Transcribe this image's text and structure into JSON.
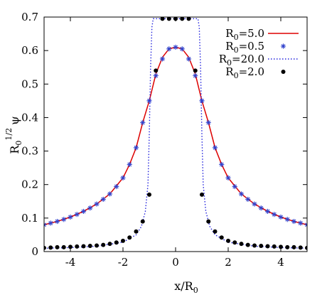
{
  "chart_data": {
    "type": "line",
    "xlabel": "x/R",
    "xlabel_sub": "0",
    "ylabel_base": "R",
    "ylabel_sub": "0",
    "ylabel_sup": "1/2",
    "ylabel_sym": "ψ",
    "xlim": [
      -5,
      5
    ],
    "ylim": [
      0,
      0.7
    ],
    "xticks": [
      -4,
      -2,
      0,
      2,
      4
    ],
    "yticks": [
      0,
      0.1,
      0.2,
      0.3,
      0.4,
      0.5,
      0.6,
      0.7
    ],
    "xtick_labels": [
      "-4",
      "-2",
      "0",
      "2",
      "4"
    ],
    "ytick_labels": [
      "0",
      "0.1",
      "0.2",
      "0.3",
      "0.4",
      "0.5",
      "0.6",
      "0.7"
    ],
    "legend_position": "top-right",
    "series": [
      {
        "name_base": "R",
        "name_sub": "0",
        "name_value": "=5.0",
        "style": "line",
        "color": "#dd0000",
        "x": [
          -5,
          -4.5,
          -4,
          -3.5,
          -3,
          -2.5,
          -2,
          -1.75,
          -1.5,
          -1.25,
          -1,
          -0.75,
          -0.5,
          -0.25,
          0,
          0.25,
          0.5,
          0.75,
          1,
          1.25,
          1.5,
          1.75,
          2,
          2.5,
          3,
          3.5,
          4,
          4.5,
          5
        ],
        "y": [
          0.08,
          0.09,
          0.103,
          0.12,
          0.142,
          0.172,
          0.22,
          0.26,
          0.31,
          0.385,
          0.45,
          0.53,
          0.58,
          0.605,
          0.61,
          0.605,
          0.58,
          0.53,
          0.45,
          0.385,
          0.31,
          0.26,
          0.22,
          0.172,
          0.142,
          0.12,
          0.103,
          0.09,
          0.08
        ]
      },
      {
        "name_base": "R",
        "name_sub": "0",
        "name_value": "=0.5",
        "style": "star",
        "color": "#3344cc",
        "x": [
          -5,
          -4.75,
          -4.5,
          -4.25,
          -4,
          -3.75,
          -3.5,
          -3.25,
          -3,
          -2.75,
          -2.5,
          -2.25,
          -2,
          -1.75,
          -1.5,
          -1.25,
          -1,
          -0.75,
          -0.5,
          -0.25,
          0,
          0.25,
          0.5,
          0.75,
          1,
          1.25,
          1.5,
          1.75,
          2,
          2.25,
          2.5,
          2.75,
          3,
          3.25,
          3.5,
          3.75,
          4,
          4.25,
          4.5,
          4.75,
          5
        ],
        "y": [
          0.08,
          0.085,
          0.09,
          0.096,
          0.103,
          0.111,
          0.12,
          0.13,
          0.142,
          0.156,
          0.172,
          0.194,
          0.22,
          0.26,
          0.31,
          0.385,
          0.45,
          0.525,
          0.575,
          0.605,
          0.61,
          0.605,
          0.575,
          0.525,
          0.45,
          0.385,
          0.31,
          0.26,
          0.22,
          0.194,
          0.172,
          0.156,
          0.142,
          0.13,
          0.12,
          0.111,
          0.103,
          0.096,
          0.09,
          0.085,
          0.08
        ]
      },
      {
        "name_base": "R",
        "name_sub": "0",
        "name_value": "=20.0",
        "style": "dotted",
        "color": "#2222dd",
        "x": [
          -5,
          -4,
          -3,
          -2,
          -1.5,
          -1.3,
          -1.15,
          -1.05,
          -1.0,
          -0.95,
          -0.9,
          -0.85,
          -0.5,
          0,
          0.5,
          0.85,
          0.9,
          0.95,
          1.0,
          1.05,
          1.15,
          1.3,
          1.5,
          2,
          3,
          4,
          5
        ],
        "y": [
          0.01,
          0.012,
          0.016,
          0.028,
          0.05,
          0.075,
          0.12,
          0.2,
          0.35,
          0.55,
          0.67,
          0.695,
          0.695,
          0.695,
          0.695,
          0.695,
          0.67,
          0.55,
          0.35,
          0.2,
          0.12,
          0.075,
          0.05,
          0.028,
          0.016,
          0.012,
          0.01
        ]
      },
      {
        "name_base": "R",
        "name_sub": "0",
        "name_value": "=2.0",
        "style": "dot",
        "color": "#000000",
        "x": [
          -5,
          -4.75,
          -4.5,
          -4.25,
          -4,
          -3.75,
          -3.5,
          -3.25,
          -3,
          -2.75,
          -2.5,
          -2.25,
          -2,
          -1.75,
          -1.5,
          -1.25,
          -1,
          -0.75,
          -0.5,
          -0.25,
          0,
          0.25,
          0.5,
          0.75,
          1,
          1.25,
          1.5,
          1.75,
          2,
          2.25,
          2.5,
          2.75,
          3,
          3.25,
          3.5,
          3.75,
          4,
          4.25,
          4.5,
          4.75,
          5
        ],
        "y": [
          0.011,
          0.012,
          0.013,
          0.013,
          0.014,
          0.015,
          0.016,
          0.017,
          0.018,
          0.02,
          0.023,
          0.027,
          0.032,
          0.042,
          0.06,
          0.09,
          0.17,
          0.54,
          0.695,
          0.695,
          0.695,
          0.695,
          0.695,
          0.54,
          0.17,
          0.09,
          0.06,
          0.042,
          0.032,
          0.027,
          0.023,
          0.02,
          0.018,
          0.017,
          0.016,
          0.015,
          0.014,
          0.013,
          0.013,
          0.012,
          0.011
        ]
      }
    ]
  }
}
